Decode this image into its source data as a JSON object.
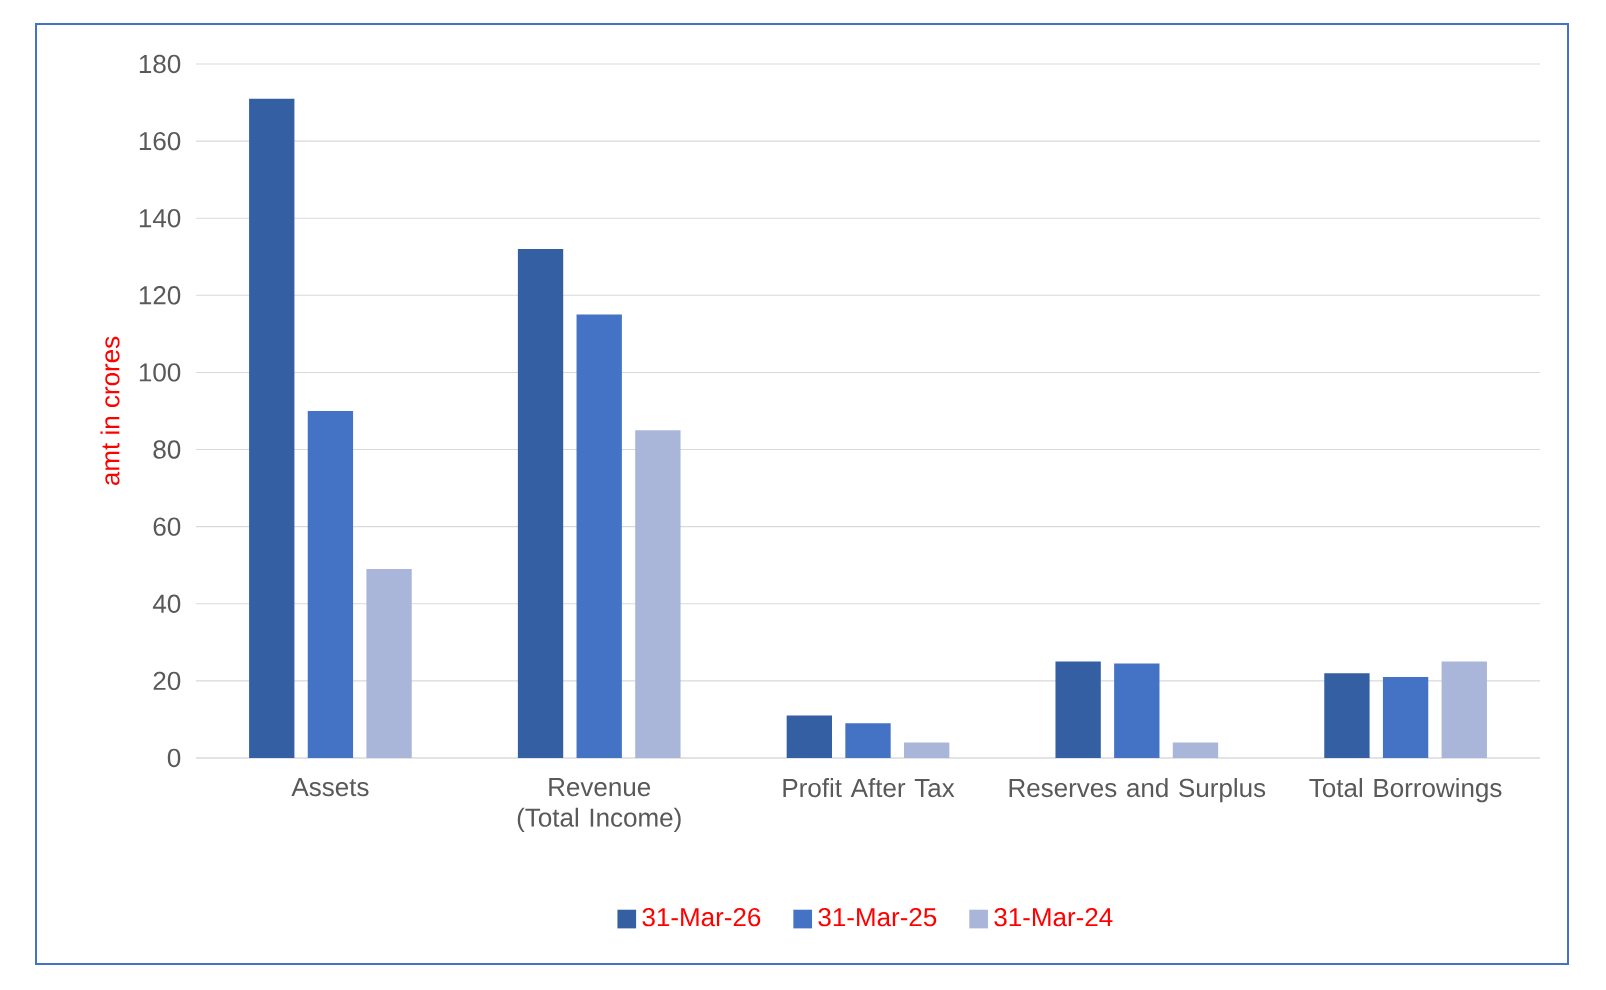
{
  "chart_data": {
    "type": "bar",
    "ylabel": "amt in crores",
    "categories": [
      "Assets",
      "Revenue (Total Income)",
      "Profit After Tax",
      "Reserves and Surplus",
      "Total Borrowings"
    ],
    "series": [
      {
        "name": "31-Mar-26",
        "color": "#355fa3",
        "values": [
          171,
          132,
          11,
          25,
          22
        ]
      },
      {
        "name": "31-Mar-25",
        "color": "#4472c4",
        "values": [
          90,
          115,
          9,
          24.5,
          21
        ]
      },
      {
        "name": "31-Mar-24",
        "color": "#a9b6da",
        "values": [
          49,
          85,
          4,
          4,
          25
        ]
      }
    ],
    "ylim": [
      0,
      180
    ],
    "yticks": [
      0,
      20,
      40,
      60,
      80,
      100,
      120,
      140,
      160,
      180
    ],
    "grid": "y",
    "legend": "bottom"
  }
}
